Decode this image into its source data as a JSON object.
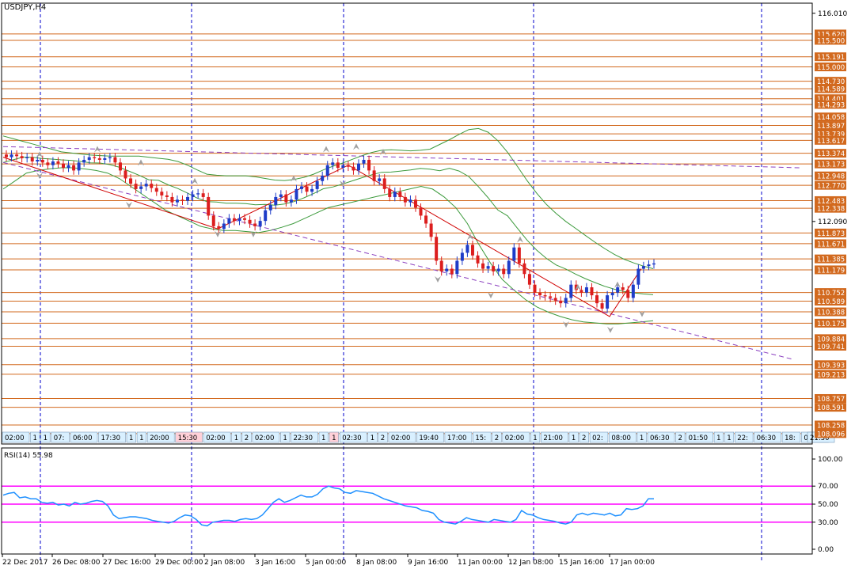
{
  "window": {
    "title": "USDJPY,H4"
  },
  "colors": {
    "background": "#ffffff",
    "axis": "#000000",
    "grid_vertical": "#0000cc",
    "level_line": "#d2691e",
    "level_label_bg": "#d2691e",
    "bull_candle": "#1e3cc8",
    "bear_candle": "#dc1e1e",
    "bollinger": "#3c9a3c",
    "trend_red": "#d00000",
    "trend_purple": "#8b3fbf",
    "rsi_line": "#1e90ff",
    "rsi_levels": "#ff00ff",
    "fractal": "#a0a0a0",
    "event_label_bg": "#d9f0ff",
    "event_label_bg_red": "#ffd0d8"
  },
  "chart_data": [
    {
      "type": "candlestick",
      "symbol": "USDJPY",
      "timeframe": "H4",
      "ylim": [
        107.9,
        116.2
      ],
      "y_ticks": [
        "116.010",
        "112.090"
      ],
      "price_levels": [
        "115.620",
        "115.500",
        "115.191",
        "115.000",
        "114.730",
        "114.589",
        "114.401",
        "114.293",
        "114.058",
        "113.897",
        "113.739",
        "113.617",
        "113.374",
        "113.173",
        "112.948",
        "112.770",
        "112.483",
        "112.338",
        "111.873",
        "111.671",
        "111.385",
        "111.179",
        "110.752",
        "110.589",
        "110.388",
        "110.175",
        "109.884",
        "109.741",
        "109.393",
        "109.213",
        "108.757",
        "108.591",
        "108.258",
        "108.096"
      ],
      "x_labels": [
        "22 Dec 2017",
        "26 Dec 08:00",
        "27 Dec 16:00",
        "29 Dec 00:00",
        "2 Jan 08:00",
        "3 Jan 16:00",
        "5 Jan 00:00",
        "8 Jan 08:00",
        "9 Jan 16:00",
        "11 Jan 00:00",
        "12 Jan 08:00",
        "15 Jan 16:00",
        "17 Jan 00:00"
      ],
      "close_series": [
        113.3,
        113.35,
        113.32,
        113.28,
        113.3,
        113.22,
        113.25,
        113.2,
        113.15,
        113.22,
        113.18,
        113.1,
        113.15,
        113.05,
        113.2,
        113.25,
        113.3,
        113.28,
        113.25,
        113.28,
        113.3,
        113.2,
        113.05,
        112.9,
        112.8,
        112.7,
        112.75,
        112.8,
        112.72,
        112.65,
        112.58,
        112.55,
        112.45,
        112.5,
        112.48,
        112.55,
        112.6,
        112.62,
        112.55,
        112.2,
        112.0,
        111.95,
        112.05,
        112.15,
        112.1,
        112.15,
        112.12,
        112.05,
        112.0,
        112.1,
        112.3,
        112.4,
        112.55,
        112.6,
        112.45,
        112.5,
        112.7,
        112.75,
        112.65,
        112.7,
        112.85,
        112.95,
        113.15,
        113.2,
        113.1,
        113.15,
        113.12,
        113.05,
        113.18,
        113.25,
        113.05,
        112.85,
        112.9,
        112.7,
        112.55,
        112.65,
        112.55,
        112.45,
        112.5,
        112.35,
        112.2,
        112.05,
        111.8,
        111.35,
        111.15,
        111.2,
        111.1,
        111.35,
        111.5,
        111.65,
        111.45,
        111.3,
        111.2,
        111.25,
        111.15,
        111.2,
        111.1,
        111.35,
        111.6,
        111.3,
        111.1,
        110.9,
        110.75,
        110.7,
        110.68,
        110.65,
        110.6,
        110.55,
        110.65,
        110.9,
        110.8,
        110.75,
        110.85,
        110.7,
        110.55,
        110.45,
        110.7,
        110.75,
        110.85,
        110.8,
        110.65,
        110.9,
        111.2,
        111.25,
        111.28,
        111.3
      ],
      "bollinger_upper": [
        113.7,
        113.65,
        113.6,
        113.55,
        113.5,
        113.45,
        113.4,
        113.38,
        113.36,
        113.34,
        113.33,
        113.32,
        113.32,
        113.32,
        113.32,
        113.3,
        113.28,
        113.26,
        113.22,
        113.15,
        113.06,
        112.98,
        112.96,
        112.95,
        112.95,
        112.95,
        112.93,
        112.9,
        112.87,
        112.86,
        112.88,
        112.92,
        112.98,
        113.06,
        113.13,
        113.19,
        113.26,
        113.33,
        113.39,
        113.43,
        113.44,
        113.43,
        113.42,
        113.43,
        113.45,
        113.54,
        113.63,
        113.73,
        113.82,
        113.84,
        113.77,
        113.61,
        113.39,
        113.13,
        112.86,
        112.62,
        112.41,
        112.24,
        112.09,
        111.96,
        111.83,
        111.7,
        111.58,
        111.47,
        111.38,
        111.31,
        111.25,
        111.2
      ],
      "bollinger_lower": [
        112.7,
        112.85,
        113.0,
        113.05,
        113.08,
        113.1,
        113.1,
        113.08,
        113.05,
        113.0,
        112.9,
        112.75,
        112.6,
        112.45,
        112.3,
        112.2,
        112.1,
        112.0,
        111.95,
        111.92,
        111.92,
        111.9,
        111.88,
        111.92,
        111.98,
        112.05,
        112.15,
        112.25,
        112.35,
        112.4,
        112.45,
        112.5,
        112.55,
        112.6,
        112.65,
        112.7,
        112.75,
        112.7,
        112.55,
        112.35,
        112.05,
        111.65,
        111.3,
        111.0,
        110.8,
        110.62,
        110.48,
        110.38,
        110.3,
        110.24,
        110.2,
        110.18,
        110.16,
        110.16,
        110.18,
        110.2,
        110.22
      ]
    },
    {
      "type": "line",
      "indicator": "RSI",
      "title": "RSI(14) 55.98",
      "ylim": [
        0,
        100
      ],
      "y_ticks": [
        "100.00",
        "70.00",
        "50.00",
        "30.00",
        "0.00"
      ],
      "levels": [
        70,
        50,
        30
      ],
      "values": [
        60,
        62,
        63,
        57,
        58,
        56,
        56,
        52,
        51,
        52,
        49,
        50,
        48,
        52,
        50,
        51,
        53,
        54,
        53,
        48,
        38,
        34,
        35,
        36,
        36,
        35,
        34,
        32,
        31,
        30,
        29,
        31,
        35,
        38,
        37,
        33,
        27,
        26,
        30,
        31,
        32,
        32,
        31,
        33,
        34,
        33,
        34,
        38,
        45,
        52,
        56,
        52,
        54,
        57,
        60,
        58,
        58,
        61,
        67,
        70,
        68,
        67,
        63,
        62,
        65,
        64,
        63,
        62,
        59,
        56,
        54,
        52,
        50,
        48,
        47,
        46,
        43,
        42,
        40,
        33,
        30,
        29,
        28,
        31,
        35,
        33,
        32,
        31,
        30,
        33,
        32,
        31,
        30,
        33,
        43,
        39,
        38,
        35,
        33,
        32,
        31,
        29,
        28,
        30,
        38,
        40,
        38,
        40,
        39,
        38,
        40,
        37,
        38,
        45,
        44,
        45,
        48,
        56,
        56
      ]
    }
  ],
  "event_labels": [
    {
      "text": "02:00",
      "red": false
    },
    {
      "text": "1",
      "red": false
    },
    {
      "text": "1",
      "red": false
    },
    {
      "text": "07:",
      "red": false
    },
    {
      "text": "06:00",
      "red": false
    },
    {
      "text": "17:30",
      "red": false
    },
    {
      "text": "1",
      "red": false
    },
    {
      "text": "1",
      "red": false
    },
    {
      "text": "20:00",
      "red": false
    },
    {
      "text": "15:30",
      "red": true
    },
    {
      "text": "02:00",
      "red": false
    },
    {
      "text": "1",
      "red": false
    },
    {
      "text": "2",
      "red": false
    },
    {
      "text": "02:00",
      "red": false
    },
    {
      "text": "1",
      "red": false
    },
    {
      "text": "22:30",
      "red": false
    },
    {
      "text": "1",
      "red": false
    },
    {
      "text": "1",
      "red": true
    },
    {
      "text": "02:30",
      "red": false
    },
    {
      "text": "1",
      "red": false
    },
    {
      "text": "2",
      "red": false
    },
    {
      "text": "02:00",
      "red": false
    },
    {
      "text": "19:40",
      "red": false
    },
    {
      "text": "17:00",
      "red": false
    },
    {
      "text": "15:",
      "red": false
    },
    {
      "text": "2",
      "red": false
    },
    {
      "text": "02:00",
      "red": false
    },
    {
      "text": "1",
      "red": false
    },
    {
      "text": "21:00",
      "red": false
    },
    {
      "text": "1",
      "red": false
    },
    {
      "text": "2",
      "red": false
    },
    {
      "text": "02:",
      "red": false
    },
    {
      "text": "08:00",
      "red": false
    },
    {
      "text": "1",
      "red": false
    },
    {
      "text": "06:30",
      "red": false
    },
    {
      "text": "2",
      "red": false
    },
    {
      "text": "01:50",
      "red": false
    },
    {
      "text": "1",
      "red": false
    },
    {
      "text": "1",
      "red": false
    },
    {
      "text": "22:",
      "red": false
    },
    {
      "text": "06:30",
      "red": false
    },
    {
      "text": "18:",
      "red": false
    },
    {
      "text": "02:00",
      "red": false
    },
    {
      "text": "21:30",
      "red": false
    }
  ]
}
